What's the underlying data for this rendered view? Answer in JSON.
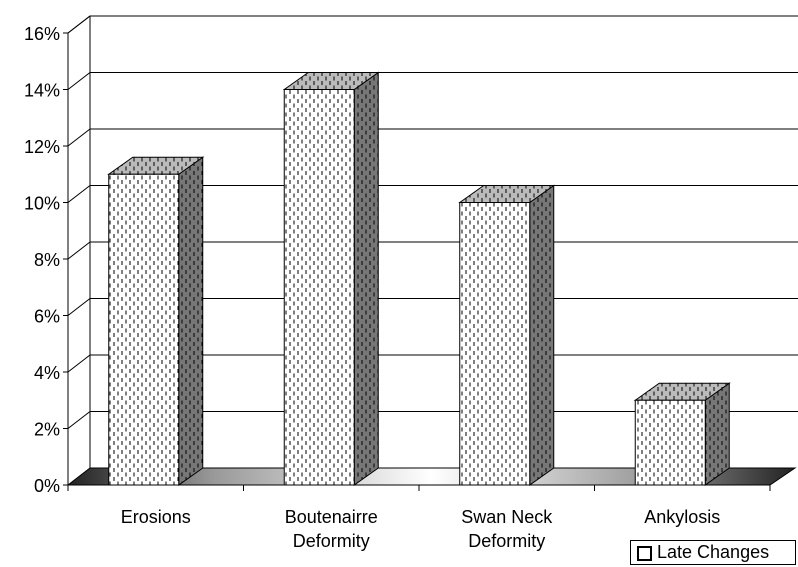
{
  "chart_data": {
    "type": "bar3d",
    "categories": [
      "Erosions",
      "Boutenairre Deformity",
      "Swan Neck Deformity",
      "Ankylosis"
    ],
    "series": [
      {
        "name": "Late Changes",
        "color": "#ffffff",
        "values": [
          11,
          14,
          10,
          3
        ]
      }
    ],
    "ylim": [
      0,
      16
    ],
    "yticks": [
      {
        "value": 0,
        "label": "0%"
      },
      {
        "value": 2,
        "label": "2%"
      },
      {
        "value": 4,
        "label": "4%"
      },
      {
        "value": 6,
        "label": "6%"
      },
      {
        "value": 8,
        "label": "8%"
      },
      {
        "value": 10,
        "label": "10%"
      },
      {
        "value": 12,
        "label": "12%"
      },
      {
        "value": 14,
        "label": "14%"
      },
      {
        "value": 16,
        "label": "16%"
      }
    ],
    "grid": true,
    "legend": "bottom-right"
  }
}
